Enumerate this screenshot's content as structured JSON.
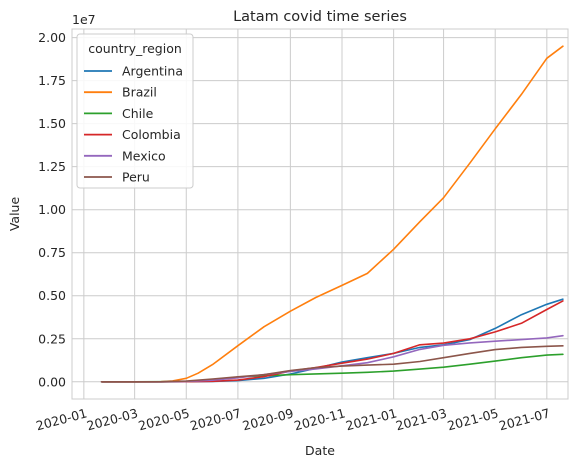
{
  "chart_data": {
    "type": "line",
    "title": "Latam covid time series",
    "xlabel": "Date",
    "ylabel": "Value",
    "y_offset_text": "1e7",
    "x_type": "date",
    "xlim": [
      "2019-12-18",
      "2021-07-26"
    ],
    "ylim": [
      -1000000,
      20500000
    ],
    "x_ticks": [
      "2020-01",
      "2020-03",
      "2020-05",
      "2020-07",
      "2020-09",
      "2020-11",
      "2021-01",
      "2021-03",
      "2021-05",
      "2021-07"
    ],
    "x_tick_dates": [
      "2020-01-01",
      "2020-03-01",
      "2020-05-01",
      "2020-07-01",
      "2020-09-01",
      "2020-11-01",
      "2021-01-01",
      "2021-03-01",
      "2021-05-01",
      "2021-07-01"
    ],
    "y_ticks": [
      "0.00",
      "0.25",
      "0.50",
      "0.75",
      "1.00",
      "1.25",
      "1.50",
      "1.75",
      "2.00"
    ],
    "y_tick_values": [
      0,
      2500000,
      5000000,
      7500000,
      10000000,
      12500000,
      15000000,
      17500000,
      20000000
    ],
    "grid": true,
    "legend": {
      "title": "country_region",
      "position": "top-left"
    },
    "series": [
      {
        "name": "Argentina",
        "color": "#1f77b4",
        "x": [
          "2020-01-22",
          "2020-03-01",
          "2020-04-01",
          "2020-05-01",
          "2020-06-01",
          "2020-07-01",
          "2020-08-01",
          "2020-09-01",
          "2020-10-01",
          "2020-11-01",
          "2020-12-01",
          "2021-01-01",
          "2021-02-01",
          "2021-03-01",
          "2021-04-01",
          "2021-05-01",
          "2021-06-01",
          "2021-07-01",
          "2021-07-20"
        ],
        "y": [
          0,
          0,
          1000,
          5000,
          20000,
          70000,
          200000,
          450000,
          780000,
          1150000,
          1400000,
          1650000,
          2000000,
          2150000,
          2450000,
          3100000,
          3900000,
          4500000,
          4800000
        ]
      },
      {
        "name": "Brazil",
        "color": "#ff7f0e",
        "x": [
          "2020-01-22",
          "2020-03-01",
          "2020-04-01",
          "2020-04-15",
          "2020-05-01",
          "2020-05-15",
          "2020-06-01",
          "2020-07-01",
          "2020-08-01",
          "2020-09-01",
          "2020-10-01",
          "2020-11-01",
          "2020-12-01",
          "2021-01-01",
          "2021-02-01",
          "2021-03-01",
          "2021-04-01",
          "2021-05-01",
          "2021-06-01",
          "2021-07-01",
          "2021-07-20"
        ],
        "y": [
          0,
          0,
          5000,
          50000,
          200000,
          500000,
          1000000,
          2100000,
          3200000,
          4100000,
          4900000,
          5600000,
          6300000,
          7700000,
          9300000,
          10700000,
          12700000,
          14700000,
          16700000,
          18800000,
          19500000
        ]
      },
      {
        "name": "Chile",
        "color": "#2ca02c",
        "x": [
          "2020-01-22",
          "2020-03-01",
          "2020-04-01",
          "2020-05-01",
          "2020-06-01",
          "2020-07-01",
          "2020-08-01",
          "2020-09-01",
          "2020-10-01",
          "2020-11-01",
          "2020-12-01",
          "2021-01-01",
          "2021-02-01",
          "2021-03-01",
          "2021-04-01",
          "2021-05-01",
          "2021-06-01",
          "2021-07-01",
          "2021-07-20"
        ],
        "y": [
          0,
          0,
          3000,
          20000,
          100000,
          280000,
          350000,
          410000,
          460000,
          500000,
          550000,
          620000,
          740000,
          850000,
          1020000,
          1200000,
          1400000,
          1550000,
          1600000
        ]
      },
      {
        "name": "Colombia",
        "color": "#d62728",
        "x": [
          "2020-01-22",
          "2020-03-01",
          "2020-04-01",
          "2020-05-01",
          "2020-06-01",
          "2020-07-01",
          "2020-08-01",
          "2020-09-01",
          "2020-10-01",
          "2020-11-01",
          "2020-12-01",
          "2021-01-01",
          "2021-02-01",
          "2021-03-01",
          "2021-04-01",
          "2021-05-01",
          "2021-06-01",
          "2021-07-01",
          "2021-07-20"
        ],
        "y": [
          0,
          0,
          1000,
          6000,
          30000,
          100000,
          300000,
          620000,
          830000,
          1080000,
          1320000,
          1650000,
          2150000,
          2250000,
          2500000,
          2900000,
          3400000,
          4200000,
          4700000
        ]
      },
      {
        "name": "Mexico",
        "color": "#9467bd",
        "x": [
          "2020-01-22",
          "2020-03-01",
          "2020-04-01",
          "2020-05-01",
          "2020-06-01",
          "2020-07-01",
          "2020-08-01",
          "2020-09-01",
          "2020-10-01",
          "2020-11-01",
          "2020-12-01",
          "2021-01-01",
          "2021-02-01",
          "2021-03-01",
          "2021-04-01",
          "2021-05-01",
          "2021-06-01",
          "2021-07-01",
          "2021-07-20"
        ],
        "y": [
          0,
          0,
          1500,
          20000,
          90000,
          230000,
          420000,
          600000,
          750000,
          930000,
          1110000,
          1450000,
          1880000,
          2120000,
          2260000,
          2360000,
          2450000,
          2550000,
          2680000
        ]
      },
      {
        "name": "Peru",
        "color": "#8c564b",
        "x": [
          "2020-01-22",
          "2020-03-01",
          "2020-04-01",
          "2020-05-01",
          "2020-06-01",
          "2020-07-01",
          "2020-08-01",
          "2020-09-01",
          "2020-10-01",
          "2020-11-01",
          "2020-12-01",
          "2021-01-01",
          "2021-02-01",
          "2021-03-01",
          "2021-04-01",
          "2021-05-01",
          "2021-06-01",
          "2021-07-01",
          "2021-07-20"
        ],
        "y": [
          0,
          0,
          1500,
          40000,
          160000,
          290000,
          410000,
          650000,
          820000,
          910000,
          970000,
          1020000,
          1180000,
          1400000,
          1650000,
          1870000,
          2000000,
          2060000,
          2090000
        ]
      }
    ]
  }
}
